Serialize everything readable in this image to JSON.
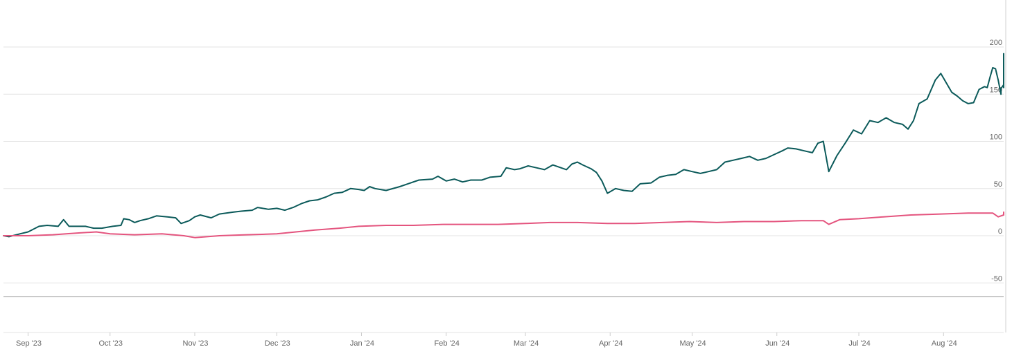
{
  "chart_data": {
    "type": "line",
    "title": "",
    "xlabel": "",
    "ylabel": "",
    "ylim": [
      -50,
      200
    ],
    "y_ticks": [
      200,
      150,
      100,
      50,
      0,
      -50
    ],
    "grid": "horizontal",
    "x_tick_labels": [
      "Sep '23",
      "Oct '23",
      "Nov '23",
      "Dec '23",
      "Jan '24",
      "Feb '24",
      "Mar '24",
      "Apr '24",
      "May '24",
      "Jun '24",
      "Jul '24",
      "Aug '24"
    ],
    "x_tick_dates": [
      "2023-09-01",
      "2023-10-01",
      "2023-11-01",
      "2023-12-01",
      "2024-01-01",
      "2024-02-01",
      "2024-03-01",
      "2024-04-01",
      "2024-05-01",
      "2024-06-01",
      "2024-07-01",
      "2024-08-01"
    ],
    "x_range": [
      "2023-08-23",
      "2024-08-23"
    ],
    "series": [
      {
        "color": "#0b5a5a",
        "points": [
          [
            "2023-08-23",
            0
          ],
          [
            "2023-08-25",
            -1
          ],
          [
            "2023-08-29",
            2
          ],
          [
            "2023-09-01",
            4
          ],
          [
            "2023-09-05",
            10
          ],
          [
            "2023-09-08",
            11
          ],
          [
            "2023-09-12",
            10
          ],
          [
            "2023-09-14",
            17
          ],
          [
            "2023-09-16",
            10
          ],
          [
            "2023-09-22",
            10
          ],
          [
            "2023-09-25",
            8
          ],
          [
            "2023-09-28",
            8
          ],
          [
            "2023-10-02",
            10
          ],
          [
            "2023-10-05",
            11
          ],
          [
            "2023-10-06",
            18
          ],
          [
            "2023-10-08",
            17
          ],
          [
            "2023-10-10",
            14
          ],
          [
            "2023-10-12",
            16
          ],
          [
            "2023-10-15",
            18
          ],
          [
            "2023-10-18",
            21
          ],
          [
            "2023-10-22",
            20
          ],
          [
            "2023-10-25",
            19
          ],
          [
            "2023-10-27",
            13
          ],
          [
            "2023-10-30",
            16
          ],
          [
            "2023-11-01",
            20
          ],
          [
            "2023-11-03",
            22
          ],
          [
            "2023-11-07",
            19
          ],
          [
            "2023-11-10",
            23
          ],
          [
            "2023-11-15",
            25
          ],
          [
            "2023-11-18",
            26
          ],
          [
            "2023-11-22",
            27
          ],
          [
            "2023-11-24",
            30
          ],
          [
            "2023-11-28",
            28
          ],
          [
            "2023-12-01",
            29
          ],
          [
            "2023-12-04",
            27
          ],
          [
            "2023-12-07",
            30
          ],
          [
            "2023-12-10",
            34
          ],
          [
            "2023-12-13",
            37
          ],
          [
            "2023-12-16",
            38
          ],
          [
            "2023-12-19",
            41
          ],
          [
            "2023-12-22",
            45
          ],
          [
            "2023-12-25",
            46
          ],
          [
            "2023-12-28",
            50
          ],
          [
            "2023-12-31",
            49
          ],
          [
            "2024-01-02",
            48
          ],
          [
            "2024-01-04",
            52
          ],
          [
            "2024-01-06",
            50
          ],
          [
            "2024-01-10",
            48
          ],
          [
            "2024-01-15",
            52
          ],
          [
            "2024-01-18",
            55
          ],
          [
            "2024-01-22",
            59
          ],
          [
            "2024-01-27",
            60
          ],
          [
            "2024-01-29",
            63
          ],
          [
            "2024-02-01",
            58
          ],
          [
            "2024-02-04",
            60
          ],
          [
            "2024-02-07",
            57
          ],
          [
            "2024-02-10",
            59
          ],
          [
            "2024-02-14",
            59
          ],
          [
            "2024-02-17",
            62
          ],
          [
            "2024-02-21",
            63
          ],
          [
            "2024-02-23",
            72
          ],
          [
            "2024-02-26",
            70
          ],
          [
            "2024-02-28",
            71
          ],
          [
            "2024-03-02",
            74
          ],
          [
            "2024-03-05",
            72
          ],
          [
            "2024-03-08",
            70
          ],
          [
            "2024-03-11",
            75
          ],
          [
            "2024-03-14",
            72
          ],
          [
            "2024-03-16",
            70
          ],
          [
            "2024-03-18",
            76
          ],
          [
            "2024-03-20",
            78
          ],
          [
            "2024-03-22",
            75
          ],
          [
            "2024-03-25",
            71
          ],
          [
            "2024-03-27",
            67
          ],
          [
            "2024-03-29",
            58
          ],
          [
            "2024-03-31",
            45
          ],
          [
            "2024-04-03",
            50
          ],
          [
            "2024-04-06",
            48
          ],
          [
            "2024-04-09",
            47
          ],
          [
            "2024-04-12",
            55
          ],
          [
            "2024-04-16",
            56
          ],
          [
            "2024-04-19",
            62
          ],
          [
            "2024-04-22",
            64
          ],
          [
            "2024-04-25",
            65
          ],
          [
            "2024-04-28",
            70
          ],
          [
            "2024-05-01",
            68
          ],
          [
            "2024-05-04",
            66
          ],
          [
            "2024-05-07",
            68
          ],
          [
            "2024-05-10",
            70
          ],
          [
            "2024-05-13",
            78
          ],
          [
            "2024-05-16",
            80
          ],
          [
            "2024-05-19",
            82
          ],
          [
            "2024-05-22",
            84
          ],
          [
            "2024-05-25",
            80
          ],
          [
            "2024-05-28",
            82
          ],
          [
            "2024-05-31",
            86
          ],
          [
            "2024-06-03",
            90
          ],
          [
            "2024-06-05",
            93
          ],
          [
            "2024-06-08",
            92
          ],
          [
            "2024-06-11",
            90
          ],
          [
            "2024-06-14",
            88
          ],
          [
            "2024-06-16",
            98
          ],
          [
            "2024-06-18",
            100
          ],
          [
            "2024-06-20",
            68
          ],
          [
            "2024-06-23",
            85
          ],
          [
            "2024-06-26",
            98
          ],
          [
            "2024-06-29",
            112
          ],
          [
            "2024-07-02",
            108
          ],
          [
            "2024-07-05",
            122
          ],
          [
            "2024-07-08",
            120
          ],
          [
            "2024-07-11",
            125
          ],
          [
            "2024-07-14",
            120
          ],
          [
            "2024-07-17",
            118
          ],
          [
            "2024-07-19",
            113
          ],
          [
            "2024-07-21",
            122
          ],
          [
            "2024-07-23",
            140
          ],
          [
            "2024-07-26",
            145
          ],
          [
            "2024-07-29",
            165
          ],
          [
            "2024-07-31",
            172
          ],
          [
            "2024-08-02",
            162
          ],
          [
            "2024-08-04",
            152
          ],
          [
            "2024-08-06",
            148
          ],
          [
            "2024-08-08",
            143
          ],
          [
            "2024-08-10",
            140
          ],
          [
            "2024-08-12",
            141
          ],
          [
            "2024-08-14",
            155
          ],
          [
            "2024-08-16",
            158
          ],
          [
            "2024-08-17",
            157
          ],
          [
            "2024-08-18",
            168
          ],
          [
            "2024-08-19",
            178
          ],
          [
            "2024-08-20",
            177
          ],
          [
            "2024-08-21",
            165
          ],
          [
            "2024-08-22",
            150
          ],
          [
            "2024-08-22",
            156
          ],
          [
            "2024-08-23",
            160
          ],
          [
            "2024-08-23",
            157
          ],
          [
            "2024-08-23",
            162
          ],
          [
            "2024-08-23",
            193
          ]
        ]
      },
      {
        "color": "#e4547e",
        "points": [
          [
            "2023-08-23",
            0
          ],
          [
            "2023-09-01",
            0
          ],
          [
            "2023-09-10",
            1
          ],
          [
            "2023-09-20",
            3
          ],
          [
            "2023-09-26",
            4
          ],
          [
            "2023-10-01",
            2
          ],
          [
            "2023-10-10",
            1
          ],
          [
            "2023-10-20",
            2
          ],
          [
            "2023-10-28",
            0
          ],
          [
            "2023-11-01",
            -2
          ],
          [
            "2023-11-10",
            0
          ],
          [
            "2023-11-20",
            1
          ],
          [
            "2023-12-01",
            2
          ],
          [
            "2023-12-08",
            4
          ],
          [
            "2023-12-15",
            6
          ],
          [
            "2023-12-24",
            8
          ],
          [
            "2023-12-31",
            10
          ],
          [
            "2024-01-10",
            11
          ],
          [
            "2024-01-20",
            11
          ],
          [
            "2024-01-31",
            12
          ],
          [
            "2024-02-10",
            12
          ],
          [
            "2024-02-20",
            12
          ],
          [
            "2024-03-01",
            13
          ],
          [
            "2024-03-10",
            14
          ],
          [
            "2024-03-20",
            14
          ],
          [
            "2024-03-31",
            13
          ],
          [
            "2024-04-10",
            13
          ],
          [
            "2024-04-20",
            14
          ],
          [
            "2024-04-30",
            15
          ],
          [
            "2024-05-10",
            14
          ],
          [
            "2024-05-20",
            15
          ],
          [
            "2024-05-31",
            15
          ],
          [
            "2024-06-10",
            16
          ],
          [
            "2024-06-18",
            16
          ],
          [
            "2024-06-20",
            12
          ],
          [
            "2024-06-24",
            17
          ],
          [
            "2024-07-01",
            18
          ],
          [
            "2024-07-10",
            20
          ],
          [
            "2024-07-20",
            22
          ],
          [
            "2024-07-31",
            23
          ],
          [
            "2024-08-10",
            24
          ],
          [
            "2024-08-19",
            24
          ],
          [
            "2024-08-21",
            20
          ],
          [
            "2024-08-23",
            22
          ],
          [
            "2024-08-23",
            25
          ]
        ]
      }
    ]
  }
}
